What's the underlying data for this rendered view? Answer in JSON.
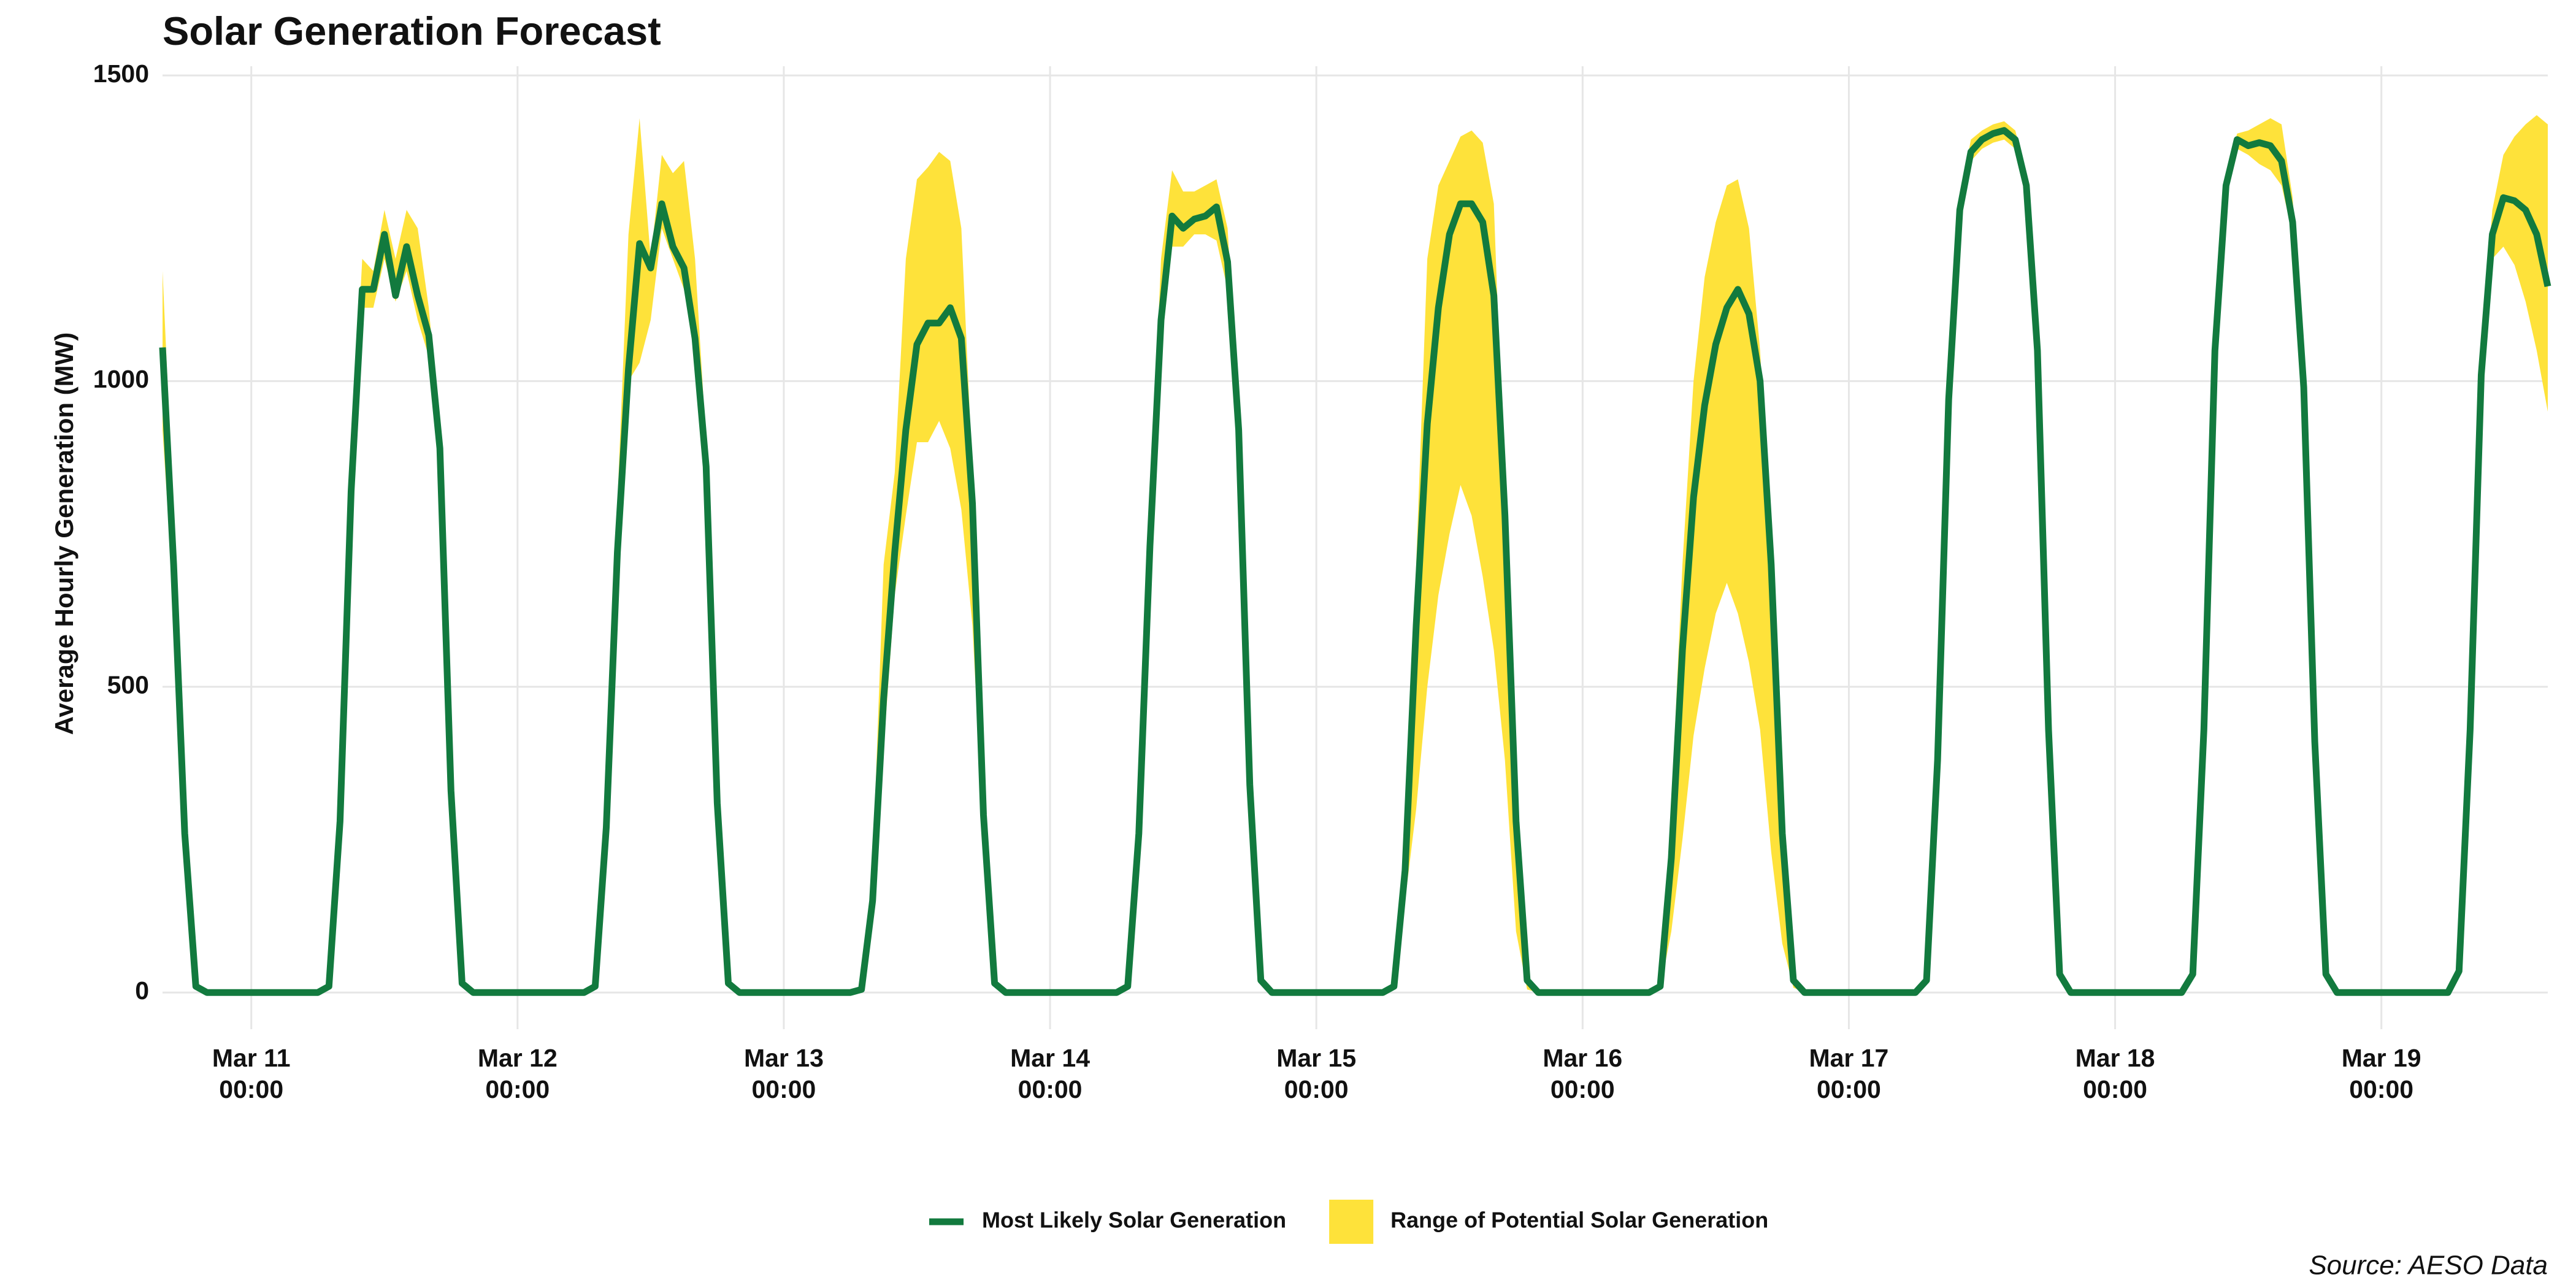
{
  "chart_data": {
    "type": "line-range",
    "title": "Solar Generation Forecast",
    "y_label": "Average Hourly Generation (MW)",
    "source": "Source: AESO Data",
    "grid": true,
    "legend_position": "bottom",
    "xlim": [
      "Mar 10 16:00",
      "Mar 19 15:00"
    ],
    "ylim": [
      -60,
      1515
    ],
    "yticks": [
      0,
      500,
      1000,
      1500
    ],
    "xticks": [
      {
        "value": "Mar 11 00:00",
        "label": "Mar 11\n00:00"
      },
      {
        "value": "Mar 12 00:00",
        "label": "Mar 12\n00:00"
      },
      {
        "value": "Mar 13 00:00",
        "label": "Mar 13\n00:00"
      },
      {
        "value": "Mar 14 00:00",
        "label": "Mar 14\n00:00"
      },
      {
        "value": "Mar 15 00:00",
        "label": "Mar 15\n00:00"
      },
      {
        "value": "Mar 16 00:00",
        "label": "Mar 16\n00:00"
      },
      {
        "value": "Mar 17 00:00",
        "label": "Mar 17\n00:00"
      },
      {
        "value": "Mar 18 00:00",
        "label": "Mar 18\n00:00"
      },
      {
        "value": "Mar 19 00:00",
        "label": "Mar 19\n00:00"
      }
    ],
    "x": [
      "Mar 10 16:00",
      "Mar 10 17:00",
      "Mar 10 18:00",
      "Mar 10 19:00",
      "Mar 10 20:00",
      "Mar 10 21:00",
      "Mar 10 22:00",
      "Mar 10 23:00",
      "Mar 11 00:00",
      "Mar 11 01:00",
      "Mar 11 02:00",
      "Mar 11 03:00",
      "Mar 11 04:00",
      "Mar 11 05:00",
      "Mar 11 06:00",
      "Mar 11 07:00",
      "Mar 11 08:00",
      "Mar 11 09:00",
      "Mar 11 10:00",
      "Mar 11 11:00",
      "Mar 11 12:00",
      "Mar 11 13:00",
      "Mar 11 14:00",
      "Mar 11 15:00",
      "Mar 11 16:00",
      "Mar 11 17:00",
      "Mar 11 18:00",
      "Mar 11 19:00",
      "Mar 11 20:00",
      "Mar 11 21:00",
      "Mar 11 22:00",
      "Mar 11 23:00",
      "Mar 12 00:00",
      "Mar 12 01:00",
      "Mar 12 02:00",
      "Mar 12 03:00",
      "Mar 12 04:00",
      "Mar 12 05:00",
      "Mar 12 06:00",
      "Mar 12 07:00",
      "Mar 12 08:00",
      "Mar 12 09:00",
      "Mar 12 10:00",
      "Mar 12 11:00",
      "Mar 12 12:00",
      "Mar 12 13:00",
      "Mar 12 14:00",
      "Mar 12 15:00",
      "Mar 12 16:00",
      "Mar 12 17:00",
      "Mar 12 18:00",
      "Mar 12 19:00",
      "Mar 12 20:00",
      "Mar 12 21:00",
      "Mar 12 22:00",
      "Mar 12 23:00",
      "Mar 13 00:00",
      "Mar 13 01:00",
      "Mar 13 02:00",
      "Mar 13 03:00",
      "Mar 13 04:00",
      "Mar 13 05:00",
      "Mar 13 06:00",
      "Mar 13 07:00",
      "Mar 13 08:00",
      "Mar 13 09:00",
      "Mar 13 10:00",
      "Mar 13 11:00",
      "Mar 13 12:00",
      "Mar 13 13:00",
      "Mar 13 14:00",
      "Mar 13 15:00",
      "Mar 13 16:00",
      "Mar 13 17:00",
      "Mar 13 18:00",
      "Mar 13 19:00",
      "Mar 13 20:00",
      "Mar 13 21:00",
      "Mar 13 22:00",
      "Mar 13 23:00",
      "Mar 14 00:00",
      "Mar 14 01:00",
      "Mar 14 02:00",
      "Mar 14 03:00",
      "Mar 14 04:00",
      "Mar 14 05:00",
      "Mar 14 06:00",
      "Mar 14 07:00",
      "Mar 14 08:00",
      "Mar 14 09:00",
      "Mar 14 10:00",
      "Mar 14 11:00",
      "Mar 14 12:00",
      "Mar 14 13:00",
      "Mar 14 14:00",
      "Mar 14 15:00",
      "Mar 14 16:00",
      "Mar 14 17:00",
      "Mar 14 18:00",
      "Mar 14 19:00",
      "Mar 14 20:00",
      "Mar 14 21:00",
      "Mar 14 22:00",
      "Mar 14 23:00",
      "Mar 15 00:00",
      "Mar 15 01:00",
      "Mar 15 02:00",
      "Mar 15 03:00",
      "Mar 15 04:00",
      "Mar 15 05:00",
      "Mar 15 06:00",
      "Mar 15 07:00",
      "Mar 15 08:00",
      "Mar 15 09:00",
      "Mar 15 10:00",
      "Mar 15 11:00",
      "Mar 15 12:00",
      "Mar 15 13:00",
      "Mar 15 14:00",
      "Mar 15 15:00",
      "Mar 15 16:00",
      "Mar 15 17:00",
      "Mar 15 18:00",
      "Mar 15 19:00",
      "Mar 15 20:00",
      "Mar 15 21:00",
      "Mar 15 22:00",
      "Mar 15 23:00",
      "Mar 16 00:00",
      "Mar 16 01:00",
      "Mar 16 02:00",
      "Mar 16 03:00",
      "Mar 16 04:00",
      "Mar 16 05:00",
      "Mar 16 06:00",
      "Mar 16 07:00",
      "Mar 16 08:00",
      "Mar 16 09:00",
      "Mar 16 10:00",
      "Mar 16 11:00",
      "Mar 16 12:00",
      "Mar 16 13:00",
      "Mar 16 14:00",
      "Mar 16 15:00",
      "Mar 16 16:00",
      "Mar 16 17:00",
      "Mar 16 18:00",
      "Mar 16 19:00",
      "Mar 16 20:00",
      "Mar 16 21:00",
      "Mar 16 22:00",
      "Mar 16 23:00",
      "Mar 17 00:00",
      "Mar 17 01:00",
      "Mar 17 02:00",
      "Mar 17 03:00",
      "Mar 17 04:00",
      "Mar 17 05:00",
      "Mar 17 06:00",
      "Mar 17 07:00",
      "Mar 17 08:00",
      "Mar 17 09:00",
      "Mar 17 10:00",
      "Mar 17 11:00",
      "Mar 17 12:00",
      "Mar 17 13:00",
      "Mar 17 14:00",
      "Mar 17 15:00",
      "Mar 17 16:00",
      "Mar 17 17:00",
      "Mar 17 18:00",
      "Mar 17 19:00",
      "Mar 17 20:00",
      "Mar 17 21:00",
      "Mar 17 22:00",
      "Mar 17 23:00",
      "Mar 18 00:00",
      "Mar 18 01:00",
      "Mar 18 02:00",
      "Mar 18 03:00",
      "Mar 18 04:00",
      "Mar 18 05:00",
      "Mar 18 06:00",
      "Mar 18 07:00",
      "Mar 18 08:00",
      "Mar 18 09:00",
      "Mar 18 10:00",
      "Mar 18 11:00",
      "Mar 18 12:00",
      "Mar 18 13:00",
      "Mar 18 14:00",
      "Mar 18 15:00",
      "Mar 18 16:00",
      "Mar 18 17:00",
      "Mar 18 18:00",
      "Mar 18 19:00",
      "Mar 18 20:00",
      "Mar 18 21:00",
      "Mar 18 22:00",
      "Mar 18 23:00",
      "Mar 19 00:00",
      "Mar 19 01:00",
      "Mar 19 02:00",
      "Mar 19 03:00",
      "Mar 19 04:00",
      "Mar 19 05:00",
      "Mar 19 06:00",
      "Mar 19 07:00",
      "Mar 19 08:00",
      "Mar 19 09:00",
      "Mar 19 10:00",
      "Mar 19 11:00",
      "Mar 19 12:00",
      "Mar 19 13:00",
      "Mar 19 14:00",
      "Mar 19 15:00"
    ],
    "series": [
      {
        "name": "Most Likely Solar Generation",
        "color": "#127a3e",
        "values": [
          1055,
          700,
          260,
          10,
          0,
          0,
          0,
          0,
          0,
          0,
          0,
          0,
          0,
          0,
          0,
          10,
          280,
          820,
          1150,
          1150,
          1240,
          1140,
          1220,
          1140,
          1075,
          890,
          330,
          15,
          0,
          0,
          0,
          0,
          0,
          0,
          0,
          0,
          0,
          0,
          0,
          10,
          270,
          720,
          1020,
          1225,
          1185,
          1290,
          1220,
          1185,
          1070,
          860,
          310,
          15,
          0,
          0,
          0,
          0,
          0,
          0,
          0,
          0,
          0,
          0,
          0,
          5,
          150,
          480,
          720,
          920,
          1060,
          1095,
          1095,
          1120,
          1070,
          800,
          290,
          15,
          0,
          0,
          0,
          0,
          0,
          0,
          0,
          0,
          0,
          0,
          0,
          10,
          260,
          730,
          1100,
          1270,
          1250,
          1265,
          1270,
          1285,
          1195,
          920,
          340,
          20,
          0,
          0,
          0,
          0,
          0,
          0,
          0,
          0,
          0,
          0,
          0,
          10,
          200,
          600,
          930,
          1120,
          1240,
          1290,
          1290,
          1260,
          1140,
          780,
          280,
          20,
          0,
          0,
          0,
          0,
          0,
          0,
          0,
          0,
          0,
          0,
          0,
          10,
          220,
          560,
          810,
          960,
          1060,
          1120,
          1150,
          1110,
          1000,
          700,
          260,
          20,
          0,
          0,
          0,
          0,
          0,
          0,
          0,
          0,
          0,
          0,
          0,
          20,
          380,
          970,
          1280,
          1375,
          1395,
          1405,
          1410,
          1395,
          1320,
          1050,
          430,
          30,
          0,
          0,
          0,
          0,
          0,
          0,
          0,
          0,
          0,
          0,
          0,
          30,
          430,
          1050,
          1320,
          1395,
          1385,
          1390,
          1385,
          1360,
          1260,
          990,
          410,
          30,
          0,
          0,
          0,
          0,
          0,
          0,
          0,
          0,
          0,
          0,
          0,
          35,
          430,
          1010,
          1240,
          1300,
          1295,
          1280,
          1240,
          1155
        ]
      },
      {
        "name": "Range of Potential Solar Generation",
        "color": "#fee23a",
        "high": [
          1180,
          780,
          280,
          12,
          0,
          0,
          0,
          0,
          0,
          0,
          0,
          0,
          0,
          0,
          0,
          12,
          300,
          850,
          1200,
          1180,
          1280,
          1200,
          1280,
          1250,
          1120,
          920,
          350,
          18,
          0,
          0,
          0,
          0,
          0,
          0,
          0,
          0,
          0,
          0,
          0,
          12,
          300,
          800,
          1240,
          1430,
          1200,
          1370,
          1340,
          1360,
          1200,
          900,
          330,
          18,
          0,
          0,
          0,
          0,
          0,
          0,
          0,
          0,
          0,
          0,
          0,
          8,
          200,
          700,
          850,
          1200,
          1330,
          1350,
          1375,
          1360,
          1250,
          850,
          320,
          18,
          0,
          0,
          0,
          0,
          0,
          0,
          0,
          0,
          0,
          0,
          0,
          12,
          280,
          780,
          1200,
          1345,
          1310,
          1310,
          1320,
          1330,
          1250,
          950,
          360,
          22,
          0,
          0,
          0,
          0,
          0,
          0,
          0,
          0,
          0,
          0,
          0,
          15,
          230,
          700,
          1200,
          1320,
          1360,
          1400,
          1410,
          1390,
          1290,
          800,
          300,
          25,
          0,
          0,
          0,
          0,
          0,
          0,
          0,
          0,
          0,
          0,
          0,
          12,
          300,
          700,
          1000,
          1170,
          1260,
          1320,
          1330,
          1250,
          1050,
          720,
          280,
          25,
          0,
          0,
          0,
          0,
          0,
          0,
          0,
          0,
          0,
          0,
          0,
          25,
          400,
          1000,
          1300,
          1395,
          1410,
          1420,
          1425,
          1410,
          1340,
          1070,
          450,
          35,
          0,
          0,
          0,
          0,
          0,
          0,
          0,
          0,
          0,
          0,
          0,
          35,
          450,
          1070,
          1340,
          1405,
          1410,
          1420,
          1430,
          1420,
          1300,
          1010,
          430,
          35,
          0,
          0,
          0,
          0,
          0,
          0,
          0,
          0,
          0,
          0,
          0,
          40,
          450,
          1050,
          1280,
          1370,
          1400,
          1420,
          1435,
          1420
        ],
        "low": [
          920,
          640,
          240,
          8,
          0,
          0,
          0,
          0,
          0,
          0,
          0,
          0,
          0,
          0,
          0,
          8,
          260,
          800,
          1120,
          1120,
          1200,
          1130,
          1180,
          1100,
          1040,
          860,
          310,
          12,
          0,
          0,
          0,
          0,
          0,
          0,
          0,
          0,
          0,
          0,
          0,
          8,
          250,
          650,
          1000,
          1030,
          1100,
          1250,
          1200,
          1150,
          1050,
          830,
          290,
          12,
          0,
          0,
          0,
          0,
          0,
          0,
          0,
          0,
          0,
          0,
          0,
          3,
          120,
          400,
          650,
          780,
          900,
          900,
          935,
          890,
          790,
          600,
          250,
          12,
          0,
          0,
          0,
          0,
          0,
          0,
          0,
          0,
          0,
          0,
          0,
          8,
          240,
          700,
          1050,
          1220,
          1220,
          1240,
          1240,
          1230,
          1150,
          880,
          320,
          18,
          0,
          0,
          0,
          0,
          0,
          0,
          0,
          0,
          0,
          0,
          0,
          5,
          150,
          300,
          500,
          650,
          750,
          830,
          780,
          680,
          560,
          380,
          100,
          5,
          0,
          0,
          0,
          0,
          0,
          0,
          0,
          0,
          0,
          0,
          0,
          5,
          100,
          250,
          420,
          530,
          620,
          670,
          620,
          540,
          430,
          230,
          80,
          8,
          0,
          0,
          0,
          0,
          0,
          0,
          0,
          0,
          0,
          0,
          0,
          15,
          360,
          950,
          1260,
          1360,
          1380,
          1390,
          1395,
          1380,
          1300,
          1030,
          410,
          25,
          0,
          0,
          0,
          0,
          0,
          0,
          0,
          0,
          0,
          0,
          0,
          25,
          410,
          1030,
          1300,
          1380,
          1370,
          1355,
          1345,
          1320,
          1240,
          970,
          390,
          25,
          0,
          0,
          0,
          0,
          0,
          0,
          0,
          0,
          0,
          0,
          0,
          30,
          410,
          980,
          1200,
          1220,
          1190,
          1130,
          1050,
          950
        ]
      }
    ]
  }
}
